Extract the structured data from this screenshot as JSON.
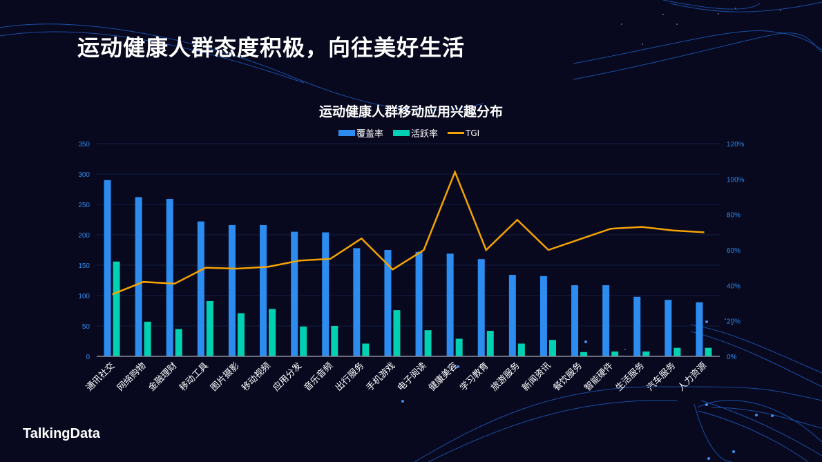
{
  "page": {
    "title": "运动健康人群态度积极，向往美好生活",
    "logo": "TalkingData"
  },
  "colors": {
    "background": "#08091f",
    "coverage": "#2d8cf0",
    "activity": "#00d1b2",
    "tgi": "#f5a300",
    "axis_label": "#2d8cf0",
    "gridline": "#14203f"
  },
  "chart_data": {
    "type": "bar",
    "title": "运动健康人群移动应用兴趣分布",
    "legend": [
      "覆盖率",
      "活跃率",
      "TGI"
    ],
    "legend_position": "top",
    "categories": [
      "通讯社交",
      "网络购物",
      "金融理财",
      "移动工具",
      "图片摄影",
      "移动视频",
      "应用分发",
      "音乐音频",
      "出行服务",
      "手机游戏",
      "电子阅读",
      "健康美容",
      "学习教育",
      "旅游服务",
      "新闻资讯",
      "餐饮服务",
      "智能硬件",
      "生活服务",
      "汽车服务",
      "人力资源"
    ],
    "series": [
      {
        "name": "覆盖率",
        "type": "bar",
        "axis": "left",
        "values": [
          290,
          262,
          259,
          222,
          216,
          216,
          205,
          204,
          178,
          175,
          172,
          169,
          160,
          134,
          132,
          117,
          117,
          98,
          93,
          89
        ]
      },
      {
        "name": "活跃率",
        "type": "bar",
        "axis": "left",
        "values": [
          156,
          57,
          45,
          91,
          71,
          78,
          49,
          50,
          21,
          76,
          43,
          29,
          42,
          21,
          27,
          7,
          8,
          8,
          14,
          14
        ]
      },
      {
        "name": "TGI",
        "type": "line",
        "axis": "right",
        "unit": "%",
        "values": [
          35,
          42,
          41,
          50,
          49.5,
          50.5,
          54,
          55,
          66.5,
          49,
          60,
          104,
          60,
          77,
          60,
          66,
          72,
          73,
          71,
          70
        ]
      }
    ],
    "y_left": {
      "ylim": [
        0,
        350
      ],
      "ticks": [
        "0",
        "50",
        "100",
        "150",
        "200",
        "250",
        "300",
        "350"
      ]
    },
    "y_right": {
      "ylim": [
        0,
        120
      ],
      "ticks": [
        "0%",
        "20%",
        "40%",
        "60%",
        "80%",
        "100%",
        "120%"
      ]
    },
    "xlabel": "",
    "ylabel": "",
    "grid": true
  }
}
